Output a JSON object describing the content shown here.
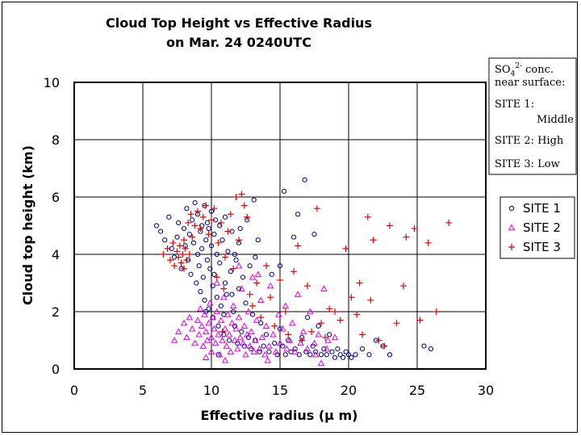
{
  "chart_data": {
    "type": "scatter",
    "title": "Cloud Top Height vs Effective Radius",
    "subtitle": "on Mar. 24 0240UTC",
    "xlabel": "Effective radius (μ m)",
    "ylabel": "Cloud top height (km)",
    "xlim": [
      0,
      30
    ],
    "ylim": [
      0,
      10
    ],
    "x_ticks": [
      "0",
      "5",
      "10",
      "15",
      "20",
      "25",
      "30"
    ],
    "y_ticks": [
      "0",
      "2",
      "4",
      "6",
      "8",
      "10"
    ],
    "grid": true,
    "legend_position": "right",
    "note": {
      "header_line1": "conc.",
      "header_line2": "near surface:",
      "species_base": "SO",
      "species_sub": "4",
      "species_sup": "2-",
      "items": [
        {
          "label": "SITE 1:",
          "value": "Middle"
        },
        {
          "label": "SITE 2: High",
          "value": ""
        },
        {
          "label": "SITE 3: Low",
          "value": ""
        }
      ]
    },
    "series": [
      {
        "name": "SITE 1",
        "marker": "circle",
        "color": "#00008B",
        "points": [
          [
            6.0,
            5.0
          ],
          [
            6.3,
            4.8
          ],
          [
            6.6,
            4.5
          ],
          [
            6.9,
            5.3
          ],
          [
            7.1,
            4.2
          ],
          [
            7.3,
            3.9
          ],
          [
            7.5,
            4.6
          ],
          [
            7.6,
            5.1
          ],
          [
            7.8,
            3.5
          ],
          [
            8.0,
            4.9
          ],
          [
            8.1,
            4.3
          ],
          [
            8.2,
            5.6
          ],
          [
            8.3,
            3.8
          ],
          [
            8.4,
            4.7
          ],
          [
            8.5,
            3.3
          ],
          [
            8.6,
            5.2
          ],
          [
            8.7,
            4.4
          ],
          [
            8.8,
            5.8
          ],
          [
            8.9,
            3.0
          ],
          [
            9.0,
            4.0
          ],
          [
            9.0,
            5.4
          ],
          [
            9.1,
            3.6
          ],
          [
            9.2,
            4.8
          ],
          [
            9.2,
            2.7
          ],
          [
            9.3,
            5.0
          ],
          [
            9.3,
            4.2
          ],
          [
            9.4,
            3.2
          ],
          [
            9.5,
            5.7
          ],
          [
            9.5,
            2.4
          ],
          [
            9.6,
            4.5
          ],
          [
            9.7,
            3.8
          ],
          [
            9.7,
            5.1
          ],
          [
            9.8,
            2.1
          ],
          [
            9.8,
            4.9
          ],
          [
            9.9,
            3.5
          ],
          [
            10.0,
            4.3
          ],
          [
            10.0,
            5.5
          ],
          [
            10.1,
            2.9
          ],
          [
            10.1,
            1.8
          ],
          [
            10.2,
            4.7
          ],
          [
            10.2,
            3.3
          ],
          [
            10.3,
            5.2
          ],
          [
            10.4,
            2.5
          ],
          [
            10.4,
            4.0
          ],
          [
            10.5,
            1.5
          ],
          [
            10.6,
            3.7
          ],
          [
            10.6,
            5.0
          ],
          [
            10.7,
            2.2
          ],
          [
            10.8,
            4.5
          ],
          [
            10.9,
            1.2
          ],
          [
            11.0,
            3.0
          ],
          [
            11.0,
            5.3
          ],
          [
            11.1,
            2.6
          ],
          [
            11.2,
            4.1
          ],
          [
            11.3,
            1.0
          ],
          [
            11.4,
            3.4
          ],
          [
            11.5,
            4.8
          ],
          [
            11.6,
            2.0
          ],
          [
            11.7,
            1.5
          ],
          [
            11.8,
            3.8
          ],
          [
            11.9,
            0.9
          ],
          [
            12.0,
            2.8
          ],
          [
            12.0,
            4.4
          ],
          [
            12.2,
            1.3
          ],
          [
            12.3,
            3.2
          ],
          [
            12.4,
            0.8
          ],
          [
            12.5,
            2.3
          ],
          [
            12.6,
            5.2
          ],
          [
            12.7,
            1.1
          ],
          [
            12.8,
            3.6
          ],
          [
            12.9,
            0.7
          ],
          [
            13.0,
            1.9
          ],
          [
            13.1,
            5.9
          ],
          [
            13.2,
            1.0
          ],
          [
            13.4,
            4.5
          ],
          [
            13.5,
            0.6
          ],
          [
            13.6,
            1.6
          ],
          [
            13.8,
            0.8
          ],
          [
            14.0,
            1.2
          ],
          [
            14.2,
            0.6
          ],
          [
            14.4,
            3.3
          ],
          [
            14.6,
            0.9
          ],
          [
            14.8,
            0.5
          ],
          [
            15.0,
            1.4
          ],
          [
            15.0,
            3.6
          ],
          [
            15.2,
            0.8
          ],
          [
            15.3,
            6.2
          ],
          [
            15.4,
            0.5
          ],
          [
            15.6,
            1.0
          ],
          [
            15.8,
            0.6
          ],
          [
            16.0,
            4.6
          ],
          [
            16.1,
            0.7
          ],
          [
            16.3,
            5.4
          ],
          [
            16.4,
            0.5
          ],
          [
            16.6,
            1.1
          ],
          [
            16.8,
            6.6
          ],
          [
            16.9,
            0.6
          ],
          [
            17.0,
            1.8
          ],
          [
            17.2,
            0.5
          ],
          [
            17.4,
            0.8
          ],
          [
            17.5,
            4.7
          ],
          [
            17.6,
            0.6
          ],
          [
            17.8,
            1.5
          ],
          [
            18.0,
            0.5
          ],
          [
            18.2,
            0.7
          ],
          [
            18.4,
            0.5
          ],
          [
            18.6,
            1.2
          ],
          [
            18.8,
            0.6
          ],
          [
            19.0,
            0.4
          ],
          [
            19.2,
            0.7
          ],
          [
            19.4,
            0.5
          ],
          [
            19.6,
            0.4
          ],
          [
            19.8,
            0.6
          ],
          [
            20.0,
            0.5
          ],
          [
            20.2,
            0.4
          ],
          [
            20.5,
            0.5
          ],
          [
            21.0,
            0.7
          ],
          [
            21.5,
            0.5
          ],
          [
            22.0,
            1.0
          ],
          [
            22.5,
            0.8
          ],
          [
            23.0,
            0.5
          ],
          [
            25.5,
            0.8
          ],
          [
            26.0,
            0.7
          ],
          [
            12.1,
            4.9
          ],
          [
            11.7,
            4.0
          ],
          [
            9.6,
            2.0
          ],
          [
            13.2,
            3.9
          ],
          [
            10.9,
            1.9
          ],
          [
            11.5,
            2.6
          ],
          [
            10.5,
            0.5
          ]
        ]
      },
      {
        "name": "SITE 2",
        "marker": "triangle",
        "color": "#E600E6",
        "points": [
          [
            7.3,
            1.0
          ],
          [
            7.6,
            1.3
          ],
          [
            8.0,
            1.6
          ],
          [
            8.2,
            1.1
          ],
          [
            8.4,
            1.8
          ],
          [
            8.6,
            1.4
          ],
          [
            8.8,
            0.9
          ],
          [
            9.0,
            1.7
          ],
          [
            9.1,
            1.2
          ],
          [
            9.2,
            2.1
          ],
          [
            9.3,
            1.5
          ],
          [
            9.4,
            0.8
          ],
          [
            9.5,
            1.9
          ],
          [
            9.6,
            1.3
          ],
          [
            9.7,
            1.0
          ],
          [
            9.8,
            1.6
          ],
          [
            9.9,
            2.3
          ],
          [
            10.0,
            1.1
          ],
          [
            10.0,
            0.6
          ],
          [
            10.1,
            1.8
          ],
          [
            10.2,
            1.4
          ],
          [
            10.3,
            0.9
          ],
          [
            10.4,
            2.0
          ],
          [
            10.5,
            1.2
          ],
          [
            10.6,
            0.5
          ],
          [
            10.7,
            1.7
          ],
          [
            10.8,
            1.0
          ],
          [
            10.9,
            2.5
          ],
          [
            11.0,
            1.4
          ],
          [
            11.1,
            0.8
          ],
          [
            11.2,
            1.9
          ],
          [
            11.3,
            1.2
          ],
          [
            11.4,
            0.6
          ],
          [
            11.5,
            1.6
          ],
          [
            11.6,
            2.2
          ],
          [
            11.7,
            1.0
          ],
          [
            11.8,
            1.4
          ],
          [
            11.9,
            0.7
          ],
          [
            12.0,
            1.8
          ],
          [
            12.1,
            1.1
          ],
          [
            12.2,
            2.8
          ],
          [
            12.3,
            0.9
          ],
          [
            12.4,
            1.5
          ],
          [
            12.5,
            0.5
          ],
          [
            12.6,
            1.2
          ],
          [
            12.7,
            2.0
          ],
          [
            12.8,
            0.8
          ],
          [
            12.9,
            1.3
          ],
          [
            13.0,
            3.2
          ],
          [
            13.1,
            0.6
          ],
          [
            13.2,
            1.0
          ],
          [
            13.3,
            1.7
          ],
          [
            13.5,
            0.7
          ],
          [
            13.6,
            2.4
          ],
          [
            13.7,
            1.1
          ],
          [
            13.9,
            0.5
          ],
          [
            14.0,
            1.5
          ],
          [
            14.2,
            0.8
          ],
          [
            14.3,
            2.9
          ],
          [
            14.5,
            1.2
          ],
          [
            14.7,
            0.6
          ],
          [
            14.9,
            1.9
          ],
          [
            15.0,
            0.9
          ],
          [
            15.2,
            1.4
          ],
          [
            15.4,
            2.2
          ],
          [
            15.5,
            0.7
          ],
          [
            15.7,
            1.0
          ],
          [
            15.9,
            1.6
          ],
          [
            16.1,
            0.6
          ],
          [
            16.3,
            2.6
          ],
          [
            16.5,
            0.9
          ],
          [
            16.7,
            1.3
          ],
          [
            17.0,
            0.7
          ],
          [
            17.2,
            2.0
          ],
          [
            17.5,
            0.9
          ],
          [
            17.8,
            1.2
          ],
          [
            18.0,
            0.2
          ],
          [
            18.2,
            2.8
          ],
          [
            18.5,
            1.0
          ],
          [
            19.0,
            1.1
          ],
          [
            10.4,
            3.0
          ],
          [
            12.0,
            3.6
          ],
          [
            13.4,
            3.3
          ],
          [
            9.6,
            0.4
          ],
          [
            11.0,
            0.3
          ],
          [
            14.1,
            0.3
          ],
          [
            17.6,
            0.5
          ],
          [
            18.4,
            0.7
          ]
        ]
      },
      {
        "name": "SITE 3",
        "marker": "plus",
        "color": "#E60000",
        "points": [
          [
            6.5,
            4.0
          ],
          [
            6.8,
            4.2
          ],
          [
            7.0,
            3.8
          ],
          [
            7.2,
            4.4
          ],
          [
            7.3,
            3.6
          ],
          [
            7.5,
            4.1
          ],
          [
            7.6,
            3.9
          ],
          [
            7.7,
            4.3
          ],
          [
            7.8,
            3.7
          ],
          [
            7.9,
            4.0
          ],
          [
            8.0,
            4.5
          ],
          [
            8.0,
            3.5
          ],
          [
            8.1,
            4.2
          ],
          [
            8.2,
            3.8
          ],
          [
            8.3,
            5.1
          ],
          [
            8.4,
            4.0
          ],
          [
            8.5,
            5.4
          ],
          [
            8.6,
            4.6
          ],
          [
            8.8,
            5.0
          ],
          [
            9.0,
            5.5
          ],
          [
            9.2,
            4.9
          ],
          [
            9.4,
            5.3
          ],
          [
            9.6,
            5.7
          ],
          [
            9.8,
            4.7
          ],
          [
            10.0,
            5.2
          ],
          [
            10.2,
            5.6
          ],
          [
            10.4,
            3.2
          ],
          [
            10.5,
            4.4
          ],
          [
            10.7,
            5.1
          ],
          [
            10.9,
            2.8
          ],
          [
            11.0,
            3.9
          ],
          [
            11.2,
            4.8
          ],
          [
            11.4,
            5.4
          ],
          [
            11.6,
            3.5
          ],
          [
            11.8,
            6.0
          ],
          [
            12.0,
            4.5
          ],
          [
            12.2,
            6.1
          ],
          [
            12.4,
            5.7
          ],
          [
            12.6,
            5.3
          ],
          [
            12.8,
            2.6
          ],
          [
            13.0,
            2.2
          ],
          [
            13.3,
            3.0
          ],
          [
            13.6,
            1.8
          ],
          [
            14.0,
            3.6
          ],
          [
            14.3,
            2.5
          ],
          [
            14.6,
            1.5
          ],
          [
            15.0,
            3.1
          ],
          [
            15.4,
            2.0
          ],
          [
            15.6,
            1.2
          ],
          [
            16.0,
            3.4
          ],
          [
            16.3,
            4.3
          ],
          [
            16.6,
            1.0
          ],
          [
            17.0,
            2.9
          ],
          [
            17.3,
            1.3
          ],
          [
            17.7,
            5.6
          ],
          [
            18.0,
            1.6
          ],
          [
            18.3,
            1.1
          ],
          [
            18.6,
            2.1
          ],
          [
            19.0,
            2.0
          ],
          [
            19.4,
            1.7
          ],
          [
            19.8,
            4.2
          ],
          [
            20.2,
            2.5
          ],
          [
            20.6,
            1.9
          ],
          [
            21.0,
            1.2
          ],
          [
            21.4,
            5.3
          ],
          [
            21.8,
            4.5
          ],
          [
            22.2,
            1.0
          ],
          [
            22.6,
            0.8
          ],
          [
            23.0,
            5.0
          ],
          [
            23.5,
            1.6
          ],
          [
            24.0,
            2.9
          ],
          [
            24.2,
            4.6
          ],
          [
            24.8,
            4.9
          ],
          [
            25.2,
            1.7
          ],
          [
            25.8,
            4.4
          ],
          [
            26.4,
            2.0
          ],
          [
            27.3,
            5.1
          ],
          [
            21.6,
            2.4
          ],
          [
            20.8,
            3.0
          ],
          [
            10.8,
            1.3
          ]
        ]
      }
    ]
  }
}
